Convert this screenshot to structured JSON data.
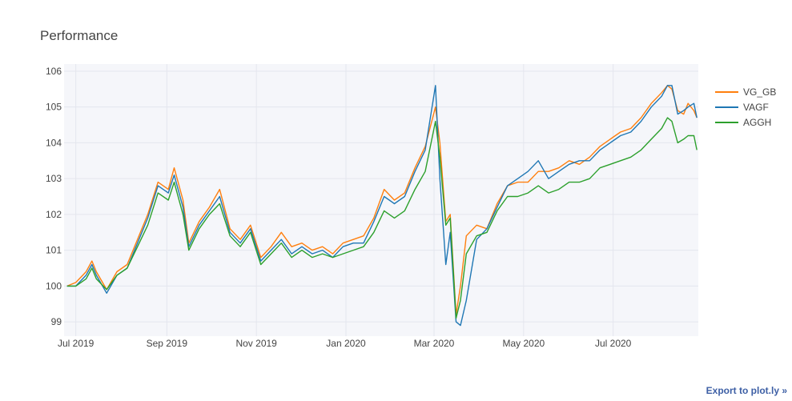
{
  "chart_data": {
    "type": "line",
    "title": "Performance",
    "xlabel": "",
    "ylabel": "",
    "x_range": [
      "2019-06-23",
      "2020-08-28"
    ],
    "ylim": [
      98.6,
      106.2
    ],
    "grid": true,
    "legend_position": "right",
    "x_ticks": [
      {
        "date": "2019-07-01",
        "label": "Jul 2019"
      },
      {
        "date": "2019-09-01",
        "label": "Sep 2019"
      },
      {
        "date": "2019-11-01",
        "label": "Nov 2019"
      },
      {
        "date": "2020-01-01",
        "label": "Jan 2020"
      },
      {
        "date": "2020-03-01",
        "label": "Mar 2020"
      },
      {
        "date": "2020-05-01",
        "label": "May 2020"
      },
      {
        "date": "2020-07-01",
        "label": "Jul 2020"
      }
    ],
    "y_ticks": [
      99,
      100,
      101,
      102,
      103,
      104,
      105,
      106
    ],
    "series": [
      {
        "name": "VG_GB",
        "color": "#ff7f0e",
        "points": [
          [
            "2019-06-25",
            100.0
          ],
          [
            "2019-07-01",
            100.1
          ],
          [
            "2019-07-08",
            100.4
          ],
          [
            "2019-07-12",
            100.7
          ],
          [
            "2019-07-15",
            100.4
          ],
          [
            "2019-07-22",
            99.9
          ],
          [
            "2019-07-29",
            100.4
          ],
          [
            "2019-08-05",
            100.6
          ],
          [
            "2019-08-12",
            101.3
          ],
          [
            "2019-08-19",
            102.0
          ],
          [
            "2019-08-26",
            102.9
          ],
          [
            "2019-09-02",
            102.7
          ],
          [
            "2019-09-06",
            103.3
          ],
          [
            "2019-09-12",
            102.4
          ],
          [
            "2019-09-16",
            101.2
          ],
          [
            "2019-09-23",
            101.8
          ],
          [
            "2019-09-30",
            102.2
          ],
          [
            "2019-10-07",
            102.7
          ],
          [
            "2019-10-14",
            101.6
          ],
          [
            "2019-10-21",
            101.3
          ],
          [
            "2019-10-28",
            101.7
          ],
          [
            "2019-11-04",
            100.8
          ],
          [
            "2019-11-11",
            101.1
          ],
          [
            "2019-11-18",
            101.5
          ],
          [
            "2019-11-25",
            101.1
          ],
          [
            "2019-12-02",
            101.2
          ],
          [
            "2019-12-09",
            101.0
          ],
          [
            "2019-12-16",
            101.1
          ],
          [
            "2019-12-23",
            100.9
          ],
          [
            "2019-12-30",
            101.2
          ],
          [
            "2020-01-06",
            101.3
          ],
          [
            "2020-01-13",
            101.4
          ],
          [
            "2020-01-20",
            101.9
          ],
          [
            "2020-01-27",
            102.7
          ],
          [
            "2020-02-03",
            102.4
          ],
          [
            "2020-02-10",
            102.6
          ],
          [
            "2020-02-17",
            103.3
          ],
          [
            "2020-02-24",
            103.9
          ],
          [
            "2020-03-02",
            105.0
          ],
          [
            "2020-03-05",
            104.0
          ],
          [
            "2020-03-09",
            101.8
          ],
          [
            "2020-03-12",
            102.0
          ],
          [
            "2020-03-16",
            99.2
          ],
          [
            "2020-03-19",
            100.0
          ],
          [
            "2020-03-23",
            101.4
          ],
          [
            "2020-03-30",
            101.7
          ],
          [
            "2020-04-06",
            101.6
          ],
          [
            "2020-04-13",
            102.3
          ],
          [
            "2020-04-20",
            102.8
          ],
          [
            "2020-04-27",
            102.9
          ],
          [
            "2020-05-04",
            102.9
          ],
          [
            "2020-05-11",
            103.2
          ],
          [
            "2020-05-18",
            103.2
          ],
          [
            "2020-05-25",
            103.3
          ],
          [
            "2020-06-01",
            103.5
          ],
          [
            "2020-06-08",
            103.4
          ],
          [
            "2020-06-15",
            103.6
          ],
          [
            "2020-06-22",
            103.9
          ],
          [
            "2020-06-29",
            104.1
          ],
          [
            "2020-07-06",
            104.3
          ],
          [
            "2020-07-13",
            104.4
          ],
          [
            "2020-07-20",
            104.7
          ],
          [
            "2020-07-27",
            105.1
          ],
          [
            "2020-08-03",
            105.4
          ],
          [
            "2020-08-07",
            105.6
          ],
          [
            "2020-08-10",
            105.5
          ],
          [
            "2020-08-14",
            104.9
          ],
          [
            "2020-08-18",
            104.8
          ],
          [
            "2020-08-21",
            105.1
          ],
          [
            "2020-08-25",
            104.9
          ],
          [
            "2020-08-27",
            104.7
          ]
        ]
      },
      {
        "name": "VAGF",
        "color": "#1f77b4",
        "points": [
          [
            "2019-06-25",
            100.0
          ],
          [
            "2019-07-01",
            100.0
          ],
          [
            "2019-07-08",
            100.3
          ],
          [
            "2019-07-12",
            100.6
          ],
          [
            "2019-07-15",
            100.3
          ],
          [
            "2019-07-22",
            99.8
          ],
          [
            "2019-07-29",
            100.3
          ],
          [
            "2019-08-05",
            100.5
          ],
          [
            "2019-08-12",
            101.2
          ],
          [
            "2019-08-19",
            101.9
          ],
          [
            "2019-08-26",
            102.8
          ],
          [
            "2019-09-02",
            102.6
          ],
          [
            "2019-09-06",
            103.1
          ],
          [
            "2019-09-12",
            102.2
          ],
          [
            "2019-09-16",
            101.1
          ],
          [
            "2019-09-23",
            101.7
          ],
          [
            "2019-09-30",
            102.1
          ],
          [
            "2019-10-07",
            102.5
          ],
          [
            "2019-10-14",
            101.5
          ],
          [
            "2019-10-21",
            101.2
          ],
          [
            "2019-10-28",
            101.6
          ],
          [
            "2019-11-04",
            100.7
          ],
          [
            "2019-11-11",
            101.0
          ],
          [
            "2019-11-18",
            101.3
          ],
          [
            "2019-11-25",
            100.9
          ],
          [
            "2019-12-02",
            101.1
          ],
          [
            "2019-12-09",
            100.9
          ],
          [
            "2019-12-16",
            101.0
          ],
          [
            "2019-12-23",
            100.8
          ],
          [
            "2019-12-30",
            101.1
          ],
          [
            "2020-01-06",
            101.2
          ],
          [
            "2020-01-13",
            101.2
          ],
          [
            "2020-01-20",
            101.8
          ],
          [
            "2020-01-27",
            102.5
          ],
          [
            "2020-02-03",
            102.3
          ],
          [
            "2020-02-10",
            102.5
          ],
          [
            "2020-02-17",
            103.2
          ],
          [
            "2020-02-24",
            103.8
          ],
          [
            "2020-03-02",
            105.6
          ],
          [
            "2020-03-05",
            103.0
          ],
          [
            "2020-03-09",
            100.6
          ],
          [
            "2020-03-12",
            101.5
          ],
          [
            "2020-03-16",
            99.0
          ],
          [
            "2020-03-19",
            98.9
          ],
          [
            "2020-03-23",
            99.6
          ],
          [
            "2020-03-30",
            101.3
          ],
          [
            "2020-04-06",
            101.6
          ],
          [
            "2020-04-13",
            102.2
          ],
          [
            "2020-04-20",
            102.8
          ],
          [
            "2020-04-27",
            103.0
          ],
          [
            "2020-05-04",
            103.2
          ],
          [
            "2020-05-11",
            103.5
          ],
          [
            "2020-05-18",
            103.0
          ],
          [
            "2020-05-25",
            103.2
          ],
          [
            "2020-06-01",
            103.4
          ],
          [
            "2020-06-08",
            103.5
          ],
          [
            "2020-06-15",
            103.5
          ],
          [
            "2020-06-22",
            103.8
          ],
          [
            "2020-06-29",
            104.0
          ],
          [
            "2020-07-06",
            104.2
          ],
          [
            "2020-07-13",
            104.3
          ],
          [
            "2020-07-20",
            104.6
          ],
          [
            "2020-07-27",
            105.0
          ],
          [
            "2020-08-03",
            105.3
          ],
          [
            "2020-08-07",
            105.6
          ],
          [
            "2020-08-10",
            105.6
          ],
          [
            "2020-08-14",
            104.8
          ],
          [
            "2020-08-18",
            104.9
          ],
          [
            "2020-08-21",
            105.0
          ],
          [
            "2020-08-25",
            105.1
          ],
          [
            "2020-08-27",
            104.7
          ]
        ]
      },
      {
        "name": "AGGH",
        "color": "#2ca02c",
        "points": [
          [
            "2019-06-25",
            100.0
          ],
          [
            "2019-07-01",
            100.0
          ],
          [
            "2019-07-08",
            100.2
          ],
          [
            "2019-07-12",
            100.5
          ],
          [
            "2019-07-15",
            100.2
          ],
          [
            "2019-07-22",
            99.9
          ],
          [
            "2019-07-29",
            100.3
          ],
          [
            "2019-08-05",
            100.5
          ],
          [
            "2019-08-12",
            101.1
          ],
          [
            "2019-08-19",
            101.7
          ],
          [
            "2019-08-26",
            102.6
          ],
          [
            "2019-09-02",
            102.4
          ],
          [
            "2019-09-06",
            102.9
          ],
          [
            "2019-09-12",
            102.0
          ],
          [
            "2019-09-16",
            101.0
          ],
          [
            "2019-09-23",
            101.6
          ],
          [
            "2019-09-30",
            102.0
          ],
          [
            "2019-10-07",
            102.3
          ],
          [
            "2019-10-14",
            101.4
          ],
          [
            "2019-10-21",
            101.1
          ],
          [
            "2019-10-28",
            101.5
          ],
          [
            "2019-11-04",
            100.6
          ],
          [
            "2019-11-11",
            100.9
          ],
          [
            "2019-11-18",
            101.2
          ],
          [
            "2019-11-25",
            100.8
          ],
          [
            "2019-12-02",
            101.0
          ],
          [
            "2019-12-09",
            100.8
          ],
          [
            "2019-12-16",
            100.9
          ],
          [
            "2019-12-23",
            100.8
          ],
          [
            "2019-12-30",
            100.9
          ],
          [
            "2020-01-06",
            101.0
          ],
          [
            "2020-01-13",
            101.1
          ],
          [
            "2020-01-20",
            101.5
          ],
          [
            "2020-01-27",
            102.1
          ],
          [
            "2020-02-03",
            101.9
          ],
          [
            "2020-02-10",
            102.1
          ],
          [
            "2020-02-17",
            102.7
          ],
          [
            "2020-02-24",
            103.2
          ],
          [
            "2020-03-02",
            104.6
          ],
          [
            "2020-03-05",
            103.6
          ],
          [
            "2020-03-09",
            101.7
          ],
          [
            "2020-03-12",
            101.9
          ],
          [
            "2020-03-16",
            99.1
          ],
          [
            "2020-03-19",
            99.6
          ],
          [
            "2020-03-23",
            100.9
          ],
          [
            "2020-03-30",
            101.4
          ],
          [
            "2020-04-06",
            101.5
          ],
          [
            "2020-04-13",
            102.1
          ],
          [
            "2020-04-20",
            102.5
          ],
          [
            "2020-04-27",
            102.5
          ],
          [
            "2020-05-04",
            102.6
          ],
          [
            "2020-05-11",
            102.8
          ],
          [
            "2020-05-18",
            102.6
          ],
          [
            "2020-05-25",
            102.7
          ],
          [
            "2020-06-01",
            102.9
          ],
          [
            "2020-06-08",
            102.9
          ],
          [
            "2020-06-15",
            103.0
          ],
          [
            "2020-06-22",
            103.3
          ],
          [
            "2020-06-29",
            103.4
          ],
          [
            "2020-07-06",
            103.5
          ],
          [
            "2020-07-13",
            103.6
          ],
          [
            "2020-07-20",
            103.8
          ],
          [
            "2020-07-27",
            104.1
          ],
          [
            "2020-08-03",
            104.4
          ],
          [
            "2020-08-07",
            104.7
          ],
          [
            "2020-08-10",
            104.6
          ],
          [
            "2020-08-14",
            104.0
          ],
          [
            "2020-08-18",
            104.1
          ],
          [
            "2020-08-21",
            104.2
          ],
          [
            "2020-08-25",
            104.2
          ],
          [
            "2020-08-27",
            103.8
          ]
        ]
      }
    ]
  },
  "export_link": "Export to plot.ly »"
}
